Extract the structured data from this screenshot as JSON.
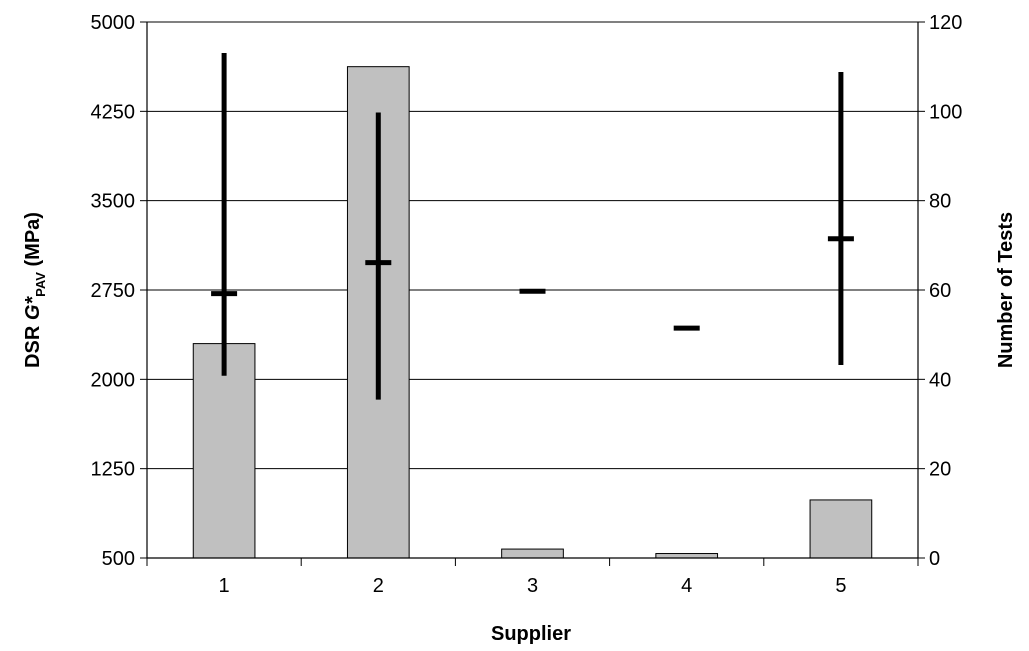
{
  "chart_data": {
    "type": "bar",
    "title": "",
    "xlabel": "Supplier",
    "ylabel": {
      "prefix": "DSR ",
      "symbol": "G*",
      "subscript": "PAV",
      "suffix": " (MPa)"
    },
    "y2label": "Number of Tests",
    "categories": [
      "1",
      "2",
      "3",
      "4",
      "5"
    ],
    "ylim": [
      500,
      5000
    ],
    "yticks": [
      "500",
      "1250",
      "2000",
      "2750",
      "3500",
      "4250",
      "5000"
    ],
    "y2lim": [
      0,
      120
    ],
    "y2ticks": [
      "0",
      "20",
      "40",
      "60",
      "80",
      "100",
      "120"
    ],
    "grid": true,
    "legend": "none",
    "bars_axis": "right",
    "bar_values": [
      48,
      110,
      2,
      1,
      13
    ],
    "ranges_axis": "left",
    "ranges": [
      {
        "mean": 2720,
        "min": 2030,
        "max": 4740
      },
      {
        "mean": 2980,
        "min": 1830,
        "max": 4240
      },
      {
        "mean": 2740,
        "min": 2740,
        "max": 2740
      },
      {
        "mean": 2430,
        "min": 2430,
        "max": 2430
      },
      {
        "mean": 3180,
        "min": 2120,
        "max": 4580
      }
    ],
    "colors": {
      "bar_fill": "#c0c0c0",
      "bar_stroke": "#000000",
      "range": "#000000",
      "grid": "#000000"
    }
  }
}
